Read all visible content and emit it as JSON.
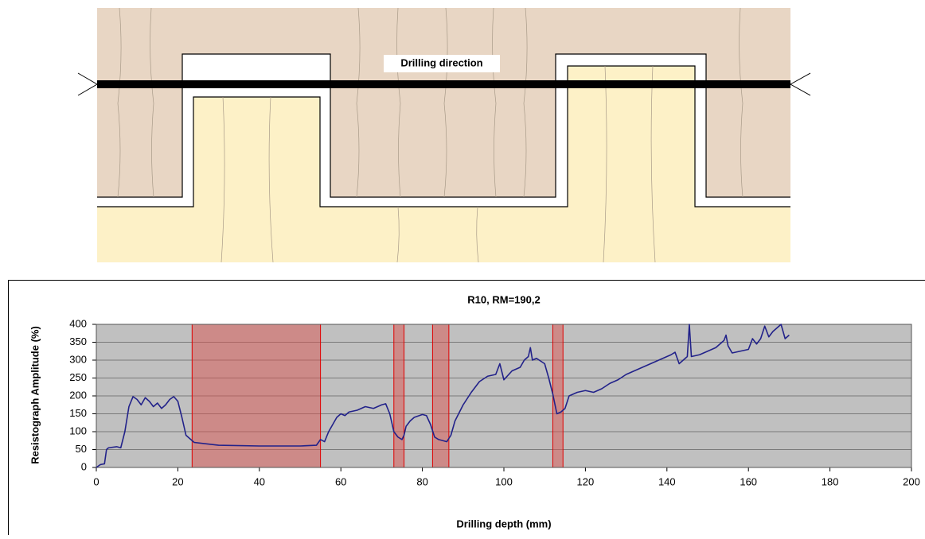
{
  "diagram": {
    "label": "Drilling direction"
  },
  "chart_data": {
    "type": "line",
    "title": "R10, RM=190,2",
    "xlabel": "Drilling depth (mm)",
    "ylabel": "Resistograph Amplitude (%)",
    "x": [
      0,
      1,
      2,
      2.5,
      3,
      5,
      6,
      7,
      8,
      9,
      10,
      11,
      12,
      13,
      14,
      15,
      16,
      17,
      18,
      19,
      20,
      21,
      22,
      23,
      24,
      30,
      40,
      50,
      54,
      55,
      56,
      57,
      58,
      59,
      60,
      61,
      62,
      64,
      66,
      68,
      70,
      71,
      72,
      73,
      74,
      75,
      75.5,
      76,
      77,
      78,
      80,
      81,
      82,
      83,
      84,
      85,
      86,
      87,
      88,
      90,
      92,
      94,
      96,
      98,
      99,
      100,
      102,
      104,
      105,
      106,
      106.5,
      107,
      108,
      110,
      111,
      112,
      113,
      114,
      115,
      116,
      118,
      120,
      122,
      124,
      126,
      128,
      130,
      132,
      134,
      136,
      138,
      140,
      141,
      142,
      143,
      144,
      145,
      145.5,
      146,
      148,
      150,
      152,
      154,
      154.5,
      155,
      156,
      158,
      160,
      161,
      162,
      163,
      164,
      165,
      166,
      167,
      168,
      169,
      170
    ],
    "series": [
      {
        "color": "#22228a",
        "values": [
          0,
          8,
          10,
          50,
          55,
          58,
          55,
          100,
          170,
          198,
          190,
          175,
          195,
          185,
          170,
          180,
          165,
          175,
          190,
          198,
          185,
          140,
          90,
          80,
          70,
          62,
          60,
          60,
          62,
          78,
          72,
          100,
          120,
          140,
          150,
          145,
          155,
          160,
          170,
          165,
          175,
          178,
          150,
          100,
          85,
          78,
          90,
          115,
          130,
          140,
          148,
          145,
          120,
          85,
          78,
          75,
          72,
          90,
          130,
          175,
          210,
          240,
          255,
          260,
          290,
          245,
          270,
          280,
          300,
          310,
          335,
          300,
          305,
          290,
          250,
          205,
          150,
          155,
          165,
          200,
          210,
          215,
          210,
          220,
          235,
          245,
          260,
          270,
          280,
          290,
          300,
          310,
          315,
          322,
          290,
          300,
          310,
          400,
          310,
          315,
          325,
          335,
          355,
          370,
          340,
          320,
          325,
          330,
          360,
          345,
          360,
          395,
          365,
          380,
          390,
          400,
          360,
          370
        ]
      }
    ],
    "highlight_spans": [
      [
        23.5,
        55
      ],
      [
        73,
        75.5
      ],
      [
        82.5,
        86.5
      ],
      [
        112,
        114.5
      ]
    ],
    "highlight_color": "#d9534f",
    "xlim": [
      0,
      200
    ],
    "xticks": [
      0,
      20,
      40,
      60,
      80,
      100,
      120,
      140,
      160,
      180,
      200
    ],
    "ylim": [
      0,
      400
    ],
    "yticks": [
      0,
      50,
      100,
      150,
      200,
      250,
      300,
      350,
      400
    ],
    "grid": true
  }
}
